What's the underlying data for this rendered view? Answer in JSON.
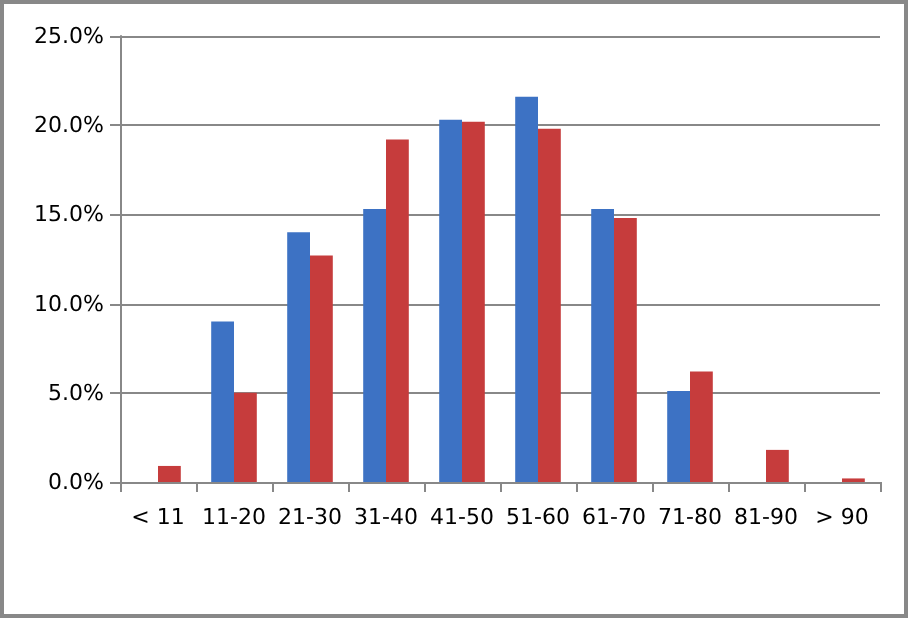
{
  "chart_data": {
    "type": "bar",
    "categories": [
      "< 11",
      "11-20",
      "21-30",
      "31-40",
      "41-50",
      "51-60",
      "61-70",
      "71-80",
      "81-90",
      "> 90"
    ],
    "series": [
      {
        "color": "#3d72c4",
        "values": [
          0,
          9.0,
          14.0,
          15.3,
          20.3,
          21.6,
          15.3,
          5.1,
          0,
          0
        ]
      },
      {
        "color": "#c63c3c",
        "values": [
          0.9,
          5.0,
          12.7,
          19.2,
          20.2,
          19.8,
          14.8,
          6.2,
          1.8,
          0.2
        ]
      }
    ],
    "ylim": [
      0,
      25
    ],
    "yticks": [
      {
        "value": 0,
        "label": "0.0%"
      },
      {
        "value": 5,
        "label": "5.0%"
      },
      {
        "value": 10,
        "label": "10.0%"
      },
      {
        "value": 15,
        "label": "15.0%"
      },
      {
        "value": 20,
        "label": "20.0%"
      },
      {
        "value": 25,
        "label": "25.0%"
      }
    ],
    "grid": "y"
  }
}
